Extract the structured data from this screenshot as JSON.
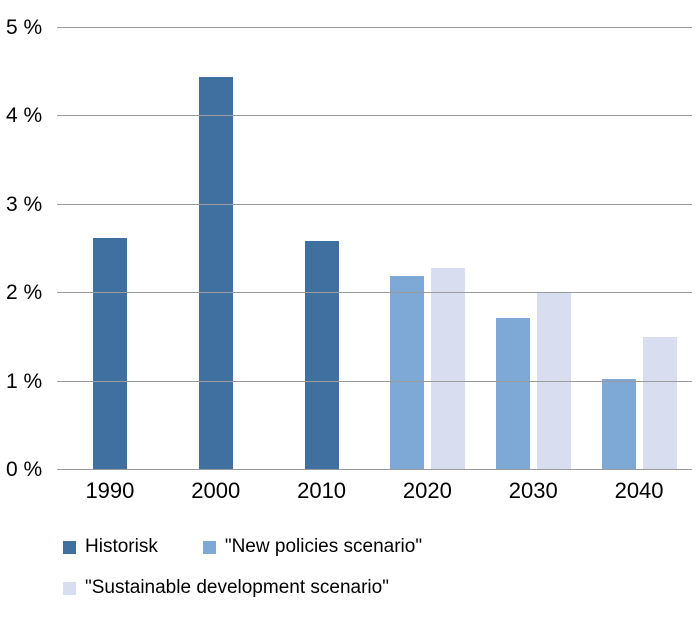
{
  "chart_data": {
    "type": "bar",
    "categories": [
      "1990",
      "2000",
      "2010",
      "2020",
      "2030",
      "2040"
    ],
    "series": [
      {
        "name": "Historisk",
        "color": "#40709F",
        "values": [
          2.62,
          4.45,
          2.59,
          null,
          null,
          null
        ]
      },
      {
        "name": "\"New policies scenario\"",
        "color": "#7EA9D6",
        "values": [
          null,
          null,
          null,
          2.19,
          1.72,
          1.03
        ]
      },
      {
        "name": "\"Sustainable development scenario\"",
        "color": "#D8DEF0",
        "values": [
          null,
          null,
          null,
          2.28,
          2.01,
          1.5
        ]
      }
    ],
    "ylim": [
      0,
      5
    ],
    "yticks": [
      {
        "value": 0,
        "label": "0 %"
      },
      {
        "value": 1,
        "label": "1 %"
      },
      {
        "value": 2,
        "label": "2 %"
      },
      {
        "value": 3,
        "label": "3 %"
      },
      {
        "value": 4,
        "label": "4 %"
      },
      {
        "value": 5,
        "label": "5 %"
      }
    ],
    "grid": true,
    "legend_position": "bottom",
    "legend_rows": [
      [
        0,
        1
      ],
      [
        2
      ]
    ],
    "title": "",
    "xlabel": "",
    "ylabel": ""
  }
}
